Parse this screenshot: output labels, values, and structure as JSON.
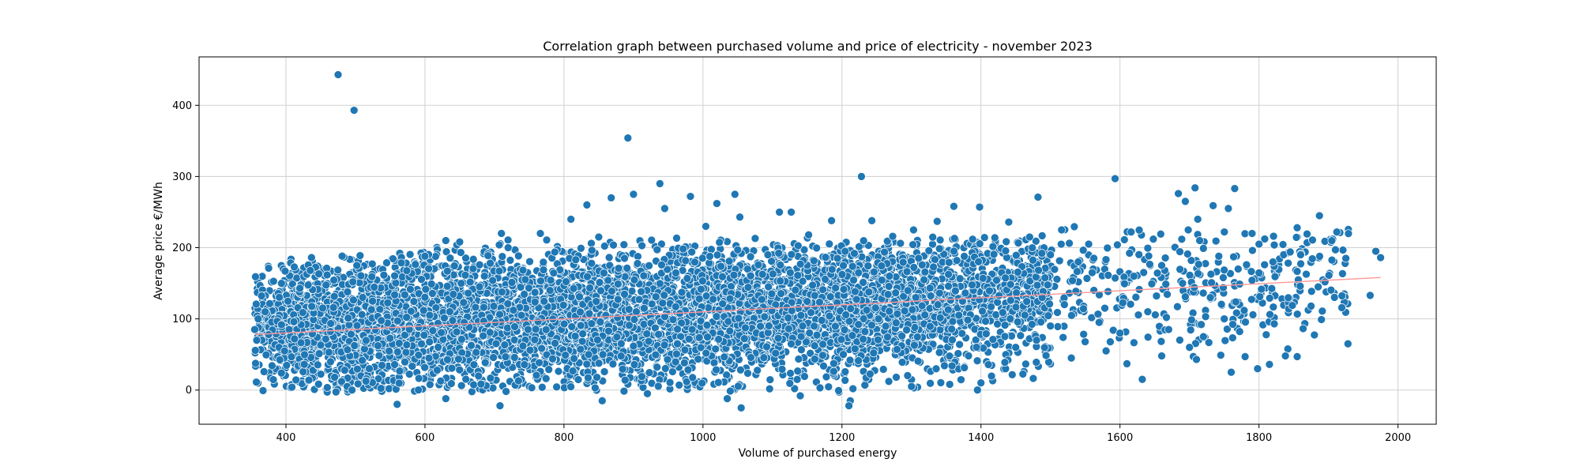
{
  "chart_data": {
    "type": "scatter",
    "title": "Correlation graph between purchased volume and price of electricity - november 2023",
    "xlabel": "Volume of purchased energy",
    "ylabel": "Average price €/MWh",
    "xlim": [
      275,
      2055
    ],
    "ylim": [
      -48,
      468
    ],
    "xticks": [
      400,
      600,
      800,
      1000,
      1200,
      1400,
      1600,
      1800,
      2000
    ],
    "yticks": [
      0,
      100,
      200,
      300,
      400
    ],
    "grid": true,
    "point_color": "#1f77b4",
    "point_edge_color": "#ffffff",
    "trendline_color": "#ff9999",
    "trendline": {
      "x": [
        355,
        1975
      ],
      "y": [
        78,
        158
      ]
    },
    "points": [
      {
        "x": 475,
        "y": 443
      },
      {
        "x": 498,
        "y": 393
      },
      {
        "x": 892,
        "y": 354
      },
      {
        "x": 1228,
        "y": 300
      },
      {
        "x": 1593,
        "y": 297
      },
      {
        "x": 938,
        "y": 290
      },
      {
        "x": 1708,
        "y": 284
      },
      {
        "x": 1765,
        "y": 283
      },
      {
        "x": 1684,
        "y": 276
      },
      {
        "x": 1046,
        "y": 275
      },
      {
        "x": 900,
        "y": 275
      },
      {
        "x": 982,
        "y": 272
      },
      {
        "x": 1482,
        "y": 271
      },
      {
        "x": 868,
        "y": 270
      },
      {
        "x": 1694,
        "y": 265
      },
      {
        "x": 1020,
        "y": 262
      },
      {
        "x": 833,
        "y": 260
      },
      {
        "x": 1734,
        "y": 259
      },
      {
        "x": 1361,
        "y": 258
      },
      {
        "x": 1398,
        "y": 257
      },
      {
        "x": 945,
        "y": 255
      },
      {
        "x": 1756,
        "y": 255
      },
      {
        "x": 1110,
        "y": 250
      },
      {
        "x": 1127,
        "y": 250
      },
      {
        "x": 1887,
        "y": 245
      },
      {
        "x": 1053,
        "y": 243
      },
      {
        "x": 810,
        "y": 240
      },
      {
        "x": 1712,
        "y": 240
      },
      {
        "x": 1185,
        "y": 238
      },
      {
        "x": 1243,
        "y": 238
      },
      {
        "x": 1337,
        "y": 237
      },
      {
        "x": 1440,
        "y": 236
      },
      {
        "x": 1004,
        "y": 230
      },
      {
        "x": 1855,
        "y": 228
      },
      {
        "x": 1303,
        "y": 225
      },
      {
        "x": 1516,
        "y": 225
      },
      {
        "x": 1616,
        "y": 222
      },
      {
        "x": 1912,
        "y": 222
      },
      {
        "x": 710,
        "y": 220
      },
      {
        "x": 766,
        "y": 220
      },
      {
        "x": 1790,
        "y": 220
      },
      {
        "x": 1152,
        "y": 218
      },
      {
        "x": 1273,
        "y": 216
      },
      {
        "x": 850,
        "y": 215
      },
      {
        "x": 1420,
        "y": 214
      },
      {
        "x": 1648,
        "y": 212
      },
      {
        "x": 630,
        "y": 210
      },
      {
        "x": 650,
        "y": 208
      },
      {
        "x": 1555,
        "y": 205
      },
      {
        "x": 1800,
        "y": 205
      },
      {
        "x": 1968,
        "y": 195
      },
      {
        "x": 1720,
        "y": 199
      },
      {
        "x": 1910,
        "y": 197
      },
      {
        "x": 1975,
        "y": 186
      },
      {
        "x": 1845,
        "y": 194
      },
      {
        "x": 1895,
        "y": 152
      },
      {
        "x": 1960,
        "y": 133
      },
      {
        "x": 1822,
        "y": 93
      },
      {
        "x": 1875,
        "y": 118
      },
      {
        "x": 1798,
        "y": 30
      },
      {
        "x": 1838,
        "y": 48
      },
      {
        "x": 1855,
        "y": 47
      },
      {
        "x": 1815,
        "y": 36
      },
      {
        "x": 1760,
        "y": 25
      },
      {
        "x": 1632,
        "y": 15
      },
      {
        "x": 1610,
        "y": 37
      },
      {
        "x": 1580,
        "y": 55
      },
      {
        "x": 1710,
        "y": 43
      },
      {
        "x": 1745,
        "y": 49
      },
      {
        "x": 1780,
        "y": 47
      },
      {
        "x": 1660,
        "y": 48
      },
      {
        "x": 1700,
        "y": 60
      },
      {
        "x": 1400,
        "y": 10
      },
      {
        "x": 1395,
        "y": 0
      },
      {
        "x": 1355,
        "y": 8
      },
      {
        "x": 1212,
        "y": -15
      },
      {
        "x": 1210,
        "y": -22
      },
      {
        "x": 1055,
        "y": -25
      },
      {
        "x": 1035,
        "y": -12
      },
      {
        "x": 920,
        "y": -5
      },
      {
        "x": 708,
        "y": -22
      },
      {
        "x": 560,
        "y": -20
      },
      {
        "x": 630,
        "y": -12
      },
      {
        "x": 855,
        "y": -15
      },
      {
        "x": 1140,
        "y": -8
      },
      {
        "x": 1300,
        "y": 5
      },
      {
        "x": 435,
        "y": 168
      },
      {
        "x": 502,
        "y": 175
      },
      {
        "x": 600,
        "y": 188
      },
      {
        "x": 420,
        "y": 143
      },
      {
        "x": 355,
        "y": 85
      },
      {
        "x": 358,
        "y": 70
      },
      {
        "x": 360,
        "y": 100
      },
      {
        "x": 370,
        "y": 110
      },
      {
        "x": 375,
        "y": 78
      },
      {
        "x": 390,
        "y": 60
      },
      {
        "x": 398,
        "y": 55
      },
      {
        "x": 433,
        "y": 14
      },
      {
        "x": 470,
        "y": 18
      },
      {
        "x": 480,
        "y": 12
      },
      {
        "x": 488,
        "y": 5
      },
      {
        "x": 495,
        "y": 0
      },
      {
        "x": 520,
        "y": 30
      },
      {
        "x": 1470,
        "y": 215
      },
      {
        "x": 1500,
        "y": 190
      },
      {
        "x": 1540,
        "y": 180
      },
      {
        "x": 1560,
        "y": 165
      },
      {
        "x": 1620,
        "y": 160
      },
      {
        "x": 1660,
        "y": 175
      },
      {
        "x": 1690,
        "y": 150
      },
      {
        "x": 1730,
        "y": 130
      },
      {
        "x": 1770,
        "y": 170
      },
      {
        "x": 1820,
        "y": 180
      },
      {
        "x": 1860,
        "y": 190
      },
      {
        "x": 1925,
        "y": 185
      },
      {
        "x": 1520,
        "y": 120
      },
      {
        "x": 1570,
        "y": 95
      },
      {
        "x": 1600,
        "y": 80
      },
      {
        "x": 1640,
        "y": 110
      },
      {
        "x": 1670,
        "y": 85
      },
      {
        "x": 1720,
        "y": 75
      },
      {
        "x": 1750,
        "y": 100
      },
      {
        "x": 1480,
        "y": 70
      },
      {
        "x": 1450,
        "y": 60
      },
      {
        "x": 1530,
        "y": 45
      },
      {
        "x": 1500,
        "y": 90
      }
    ],
    "dense_cloud": {
      "count": 6200,
      "x_range": [
        355,
        1500
      ],
      "y_center_at_x": [
        [
          355,
          88
        ],
        [
          800,
          100
        ],
        [
          1200,
          118
        ],
        [
          1500,
          130
        ]
      ],
      "y_spread": [
        0,
        215
      ]
    },
    "sparse_tail": {
      "count": 380,
      "x_range": [
        1450,
        1930
      ],
      "y_range": [
        40,
        230
      ]
    }
  }
}
